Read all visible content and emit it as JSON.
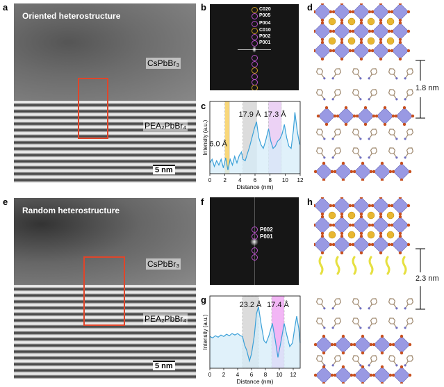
{
  "panels": {
    "a": {
      "label": "a",
      "title": "Oriented heterostructure",
      "phase_top": "CsPbBr₃",
      "phase_bottom": "PEA₂PbBr₄",
      "scale_bar": "5 nm"
    },
    "b": {
      "label": "b",
      "spots": [
        "C020",
        "P005",
        "P004",
        "C010",
        "P002",
        "P001"
      ]
    },
    "c": {
      "label": "c"
    },
    "d": {
      "label": "d",
      "spacing": "1.8 nm"
    },
    "e": {
      "label": "e",
      "title": "Random heterostructure",
      "phase_top": "CsPbBr₃",
      "phase_bottom": "PEA₂PbBr₄",
      "scale_bar": "5 nm"
    },
    "f": {
      "label": "f",
      "spots": [
        "P002",
        "P001"
      ]
    },
    "g": {
      "label": "g"
    },
    "h": {
      "label": "h",
      "spacing": "2.3 nm"
    }
  },
  "chart_data": [
    {
      "id": "c",
      "type": "line",
      "xlabel": "Distance (nm)",
      "ylabel": "Intensity (a.u.)",
      "xlim": [
        0,
        12
      ],
      "ylim": [
        0,
        1
      ],
      "xticks": [
        "0",
        "2",
        "4",
        "6",
        "8",
        "10",
        "12"
      ],
      "x": [
        0,
        0.3,
        0.6,
        0.9,
        1.2,
        1.5,
        1.8,
        2.1,
        2.4,
        2.7,
        3.0,
        3.3,
        3.6,
        3.9,
        4.2,
        4.4,
        4.7,
        5.0,
        5.3,
        5.6,
        5.9,
        6.2,
        6.5,
        6.8,
        7.1,
        7.4,
        7.8,
        8.1,
        8.4,
        8.7,
        9.0,
        9.3,
        9.6,
        9.9,
        10.2,
        10.5,
        10.8,
        11.1,
        11.3,
        11.6,
        11.9,
        12
      ],
      "y": [
        0.15,
        0.2,
        0.1,
        0.18,
        0.12,
        0.2,
        0.08,
        0.22,
        0.05,
        0.2,
        0.12,
        0.24,
        0.15,
        0.25,
        0.3,
        0.2,
        0.18,
        0.28,
        0.38,
        0.5,
        0.62,
        0.72,
        0.5,
        0.4,
        0.35,
        0.45,
        0.62,
        0.45,
        0.35,
        0.38,
        0.45,
        0.48,
        0.55,
        0.68,
        0.5,
        0.38,
        0.35,
        0.6,
        0.85,
        0.6,
        0.42,
        0.4
      ],
      "bands": [
        {
          "from": 2.0,
          "to": 2.6,
          "color": "#f8d77a",
          "label": "6.0 Å"
        },
        {
          "from": 4.4,
          "to": 6.2,
          "color": "#dcdcdc",
          "label": "17.9 Å"
        },
        {
          "from": 7.8,
          "to": 9.5,
          "color": "#ecd2f5",
          "label": "17.3 Å"
        }
      ],
      "line_color": "#3aa0d8",
      "fill_color": "#d6ecf8"
    },
    {
      "id": "g",
      "type": "line",
      "xlabel": "Distance (nm)",
      "ylabel": "Intensity (a.u.)",
      "xlim": [
        0,
        13
      ],
      "ylim": [
        0,
        1
      ],
      "xticks": [
        "0",
        "2",
        "4",
        "6",
        "8",
        "10",
        "12"
      ],
      "x": [
        0,
        0.4,
        0.8,
        1.2,
        1.6,
        2.0,
        2.4,
        2.8,
        3.2,
        3.6,
        4.0,
        4.4,
        4.7,
        5.0,
        5.3,
        5.7,
        6.0,
        6.4,
        6.7,
        7.0,
        7.4,
        7.8,
        8.1,
        8.5,
        9.0,
        9.4,
        9.8,
        10.2,
        10.7,
        11.1,
        11.5,
        11.9,
        12.2,
        12.5,
        12.8,
        13
      ],
      "y": [
        0.44,
        0.42,
        0.45,
        0.43,
        0.46,
        0.44,
        0.47,
        0.45,
        0.48,
        0.46,
        0.48,
        0.45,
        0.44,
        0.32,
        0.25,
        0.1,
        0.2,
        0.45,
        0.75,
        0.85,
        0.6,
        0.38,
        0.35,
        0.45,
        0.62,
        0.4,
        0.15,
        0.35,
        0.62,
        0.45,
        0.3,
        0.35,
        0.55,
        0.72,
        0.55,
        0.35
      ],
      "bands": [
        {
          "from": 4.7,
          "to": 7.0,
          "color": "#dcdcdc",
          "label": "23.2 Å"
        },
        {
          "from": 8.9,
          "to": 10.7,
          "color": "#f2b6f5",
          "label": "17.4 Å"
        }
      ],
      "line_color": "#3aa0d8",
      "fill_color": "#d6ecf8"
    }
  ]
}
